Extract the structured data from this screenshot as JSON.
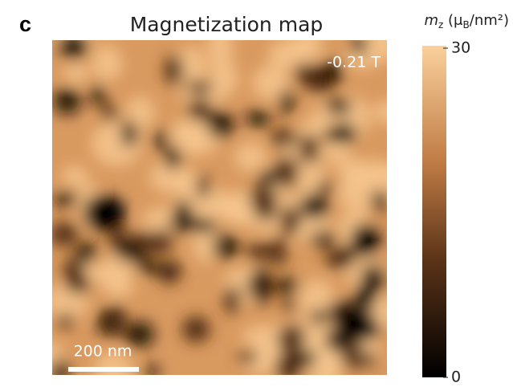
{
  "panel_label": "c",
  "title": "Magnetization map",
  "field_label": "-0.21 T",
  "scale_bar_label": "200 nm",
  "colorbar": {
    "symbol": "m",
    "symbol_sub": "z",
    "unit_open": " (μ",
    "unit_sub": "B",
    "unit_rest": "/nm²)",
    "lim": [
      0,
      30
    ],
    "ticks": [
      0,
      30
    ]
  }
}
